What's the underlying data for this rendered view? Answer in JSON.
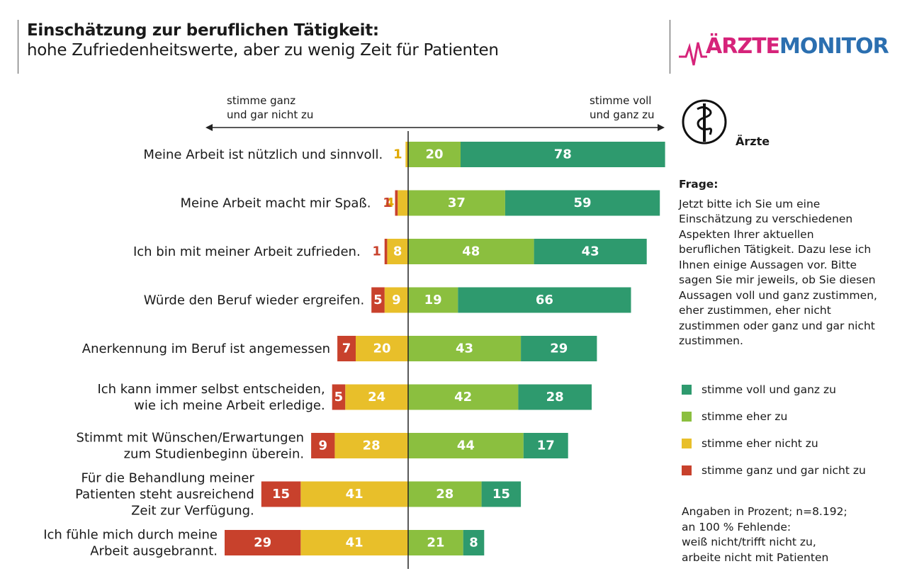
{
  "header": {
    "title": "Einschätzung zur beruflichen Tätigkeit:",
    "subtitle": "hohe Zufriedenheitswerte, aber zu wenig Zeit für Patienten",
    "logo_part1": "ÄRZTE",
    "logo_part2": "MONITOR"
  },
  "axis": {
    "left_label": "stimme ganz\nund gar nicht zu",
    "right_label": "stimme voll\nund ganz zu"
  },
  "respondent_label": "Ärzte",
  "question": {
    "heading": "Frage:",
    "text": "Jetzt bitte ich Sie um eine\nEinschätzung zu verschiedenen\nAspekten Ihrer aktuellen\nberuflichen Tätigkeit. Dazu lese ich\nIhnen einige Aussagen vor. Bitte\nsagen Sie mir jeweils, ob Sie diesen\nAussagen voll und ganz zustimmen,\neher zustimmen, eher nicht\nzustimmen oder ganz und gar nicht\nzustimmen."
  },
  "note": "Angaben in Prozent; n=8.192;\nan 100 % Fehlende:\nweiß nicht/trifft nicht zu,\narbeite nicht mit Patienten",
  "colors": {
    "voll_und_ganz": "#2e9a6e",
    "eher_zu": "#8bbf3f",
    "eher_nicht": "#e8bf2a",
    "gar_nicht": "#c8412c",
    "label_eher_nicht": "#e0a800",
    "label_gar_nicht": "#c8412c"
  },
  "chart_data": {
    "type": "bar",
    "orientation": "horizontal-diverging",
    "categories": [
      "Meine Arbeit ist nützlich und sinnvoll.",
      "Meine Arbeit macht mir Spaß.",
      "Ich bin mit meiner Arbeit zufrieden.",
      "Würde den Beruf wieder ergreifen.",
      "Anerkennung im Beruf ist angemessen",
      "Ich kann immer selbst entscheiden,\nwie ich meine Arbeit erledige.",
      "Stimmt mit Wünschen/Erwartungen\nzum Studienbeginn überein.",
      "Für die Behandlung meiner\nPatienten steht ausreichend\nZeit zur Verfügung.",
      "Ich fühle mich durch  meine\nArbeit ausgebrannt."
    ],
    "series": [
      {
        "name": "stimme voll und ganz zu",
        "values": [
          78,
          59,
          43,
          66,
          29,
          28,
          17,
          15,
          8
        ]
      },
      {
        "name": "stimme eher zu",
        "values": [
          20,
          37,
          48,
          19,
          43,
          42,
          44,
          28,
          21
        ]
      },
      {
        "name": "stimme eher nicht zu",
        "values": [
          1,
          4,
          8,
          9,
          20,
          24,
          28,
          41,
          41
        ]
      },
      {
        "name": "stimme ganz und gar nicht zu",
        "values": [
          0,
          1,
          1,
          5,
          7,
          5,
          9,
          15,
          29
        ]
      }
    ],
    "legend_position": "right"
  }
}
